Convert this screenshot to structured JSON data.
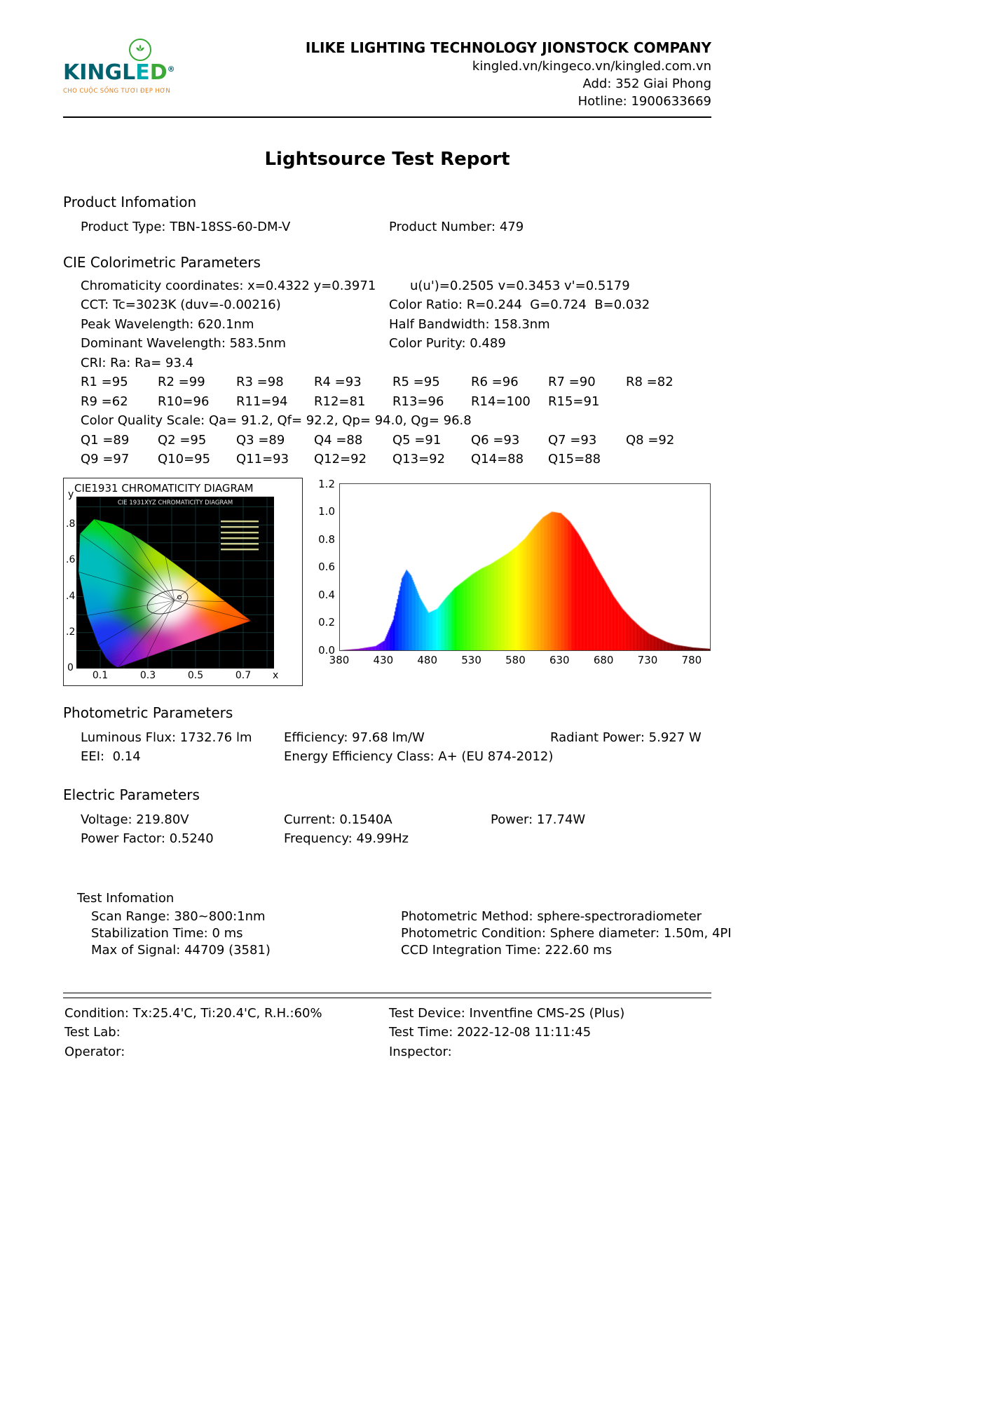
{
  "header": {
    "logo": {
      "brand_king": "KINGL",
      "brand_e": "E",
      "brand_d": "D",
      "registered": "®",
      "tagline": "CHO CUỘC SỐNG TƯƠI ĐẸP HƠN",
      "colors": {
        "brand_teal": "#00626e",
        "brand_light_teal": "#00a9ad",
        "brand_green": "#3aa935",
        "tagline_orange": "#e07f1f"
      }
    },
    "company_name": "ILIKE LIGHTING TECHNOLOGY JIONSTOCK COMPANY",
    "websites": "kingled.vn/kingeco.vn/kingled.com.vn",
    "address": "Add: 352 Giai Phong",
    "hotline": "Hotline: 1900633669"
  },
  "report_title": "Lightsource Test Report",
  "product_info": {
    "heading": "Product Infomation",
    "product_type": "Product Type: TBN-18SS-60-DM-V",
    "product_number": "Product Number: 479"
  },
  "cie_params": {
    "heading": "CIE Colorimetric Parameters",
    "chromaticity_left": "Chromaticity coordinates: x=0.4322 y=0.3971",
    "chromaticity_right": "u(u')=0.2505 v=0.3453 v'=0.5179",
    "cct": "CCT: Tc=3023K (duv=-0.00216)",
    "color_ratio": "Color Ratio: R=0.244  G=0.724  B=0.032",
    "peak_wavelength": "Peak Wavelength: 620.1nm",
    "half_bandwidth": "Half Bandwidth: 158.3nm",
    "dominant_wavelength": "Dominant Wavelength: 583.5nm",
    "color_purity": "Color Purity: 0.489",
    "cri": "CRI: Ra: Ra= 93.4",
    "r_row1": [
      "R1 =95",
      "R2 =99",
      "R3 =98",
      "R4 =93",
      "R5 =95",
      "R6 =96",
      "R7 =90",
      "R8 =82"
    ],
    "r_row2": [
      "R9 =62",
      "R10=96",
      "R11=94",
      "R12=81",
      "R13=96",
      "R14=100",
      "R15=91"
    ],
    "cqs": "Color Quality Scale: Qa= 91.2, Qf= 92.2, Qp= 94.0, Qg= 96.8",
    "q_row1": [
      "Q1 =89",
      "Q2 =95",
      "Q3 =89",
      "Q4 =88",
      "Q5 =91",
      "Q6 =93",
      "Q7 =93",
      "Q8 =92"
    ],
    "q_row2": [
      "Q9 =97",
      "Q10=95",
      "Q11=93",
      "Q12=92",
      "Q13=92",
      "Q14=88",
      "Q15=88"
    ]
  },
  "photometric": {
    "heading": "Photometric Parameters",
    "luminous_flux": "Luminous Flux: 1732.76 lm",
    "efficiency": "Efficiency: 97.68 lm/W",
    "radiant_power": "Radiant Power: 5.927 W",
    "eei": "EEI:  0.14",
    "energy_class": "Energy Efficiency Class: A+ (EU 874-2012)"
  },
  "electric": {
    "heading": "Electric Parameters",
    "voltage": "Voltage: 219.80V",
    "current": "Current: 0.1540A",
    "power": "Power: 17.74W",
    "power_factor": "Power Factor: 0.5240",
    "frequency": "Frequency: 49.99Hz"
  },
  "test_info": {
    "heading": "Test Infomation",
    "scan_range": "Scan Range: 380~800:1nm",
    "stabilization_time": "Stabilization Time: 0 ms",
    "max_signal": "Max of Signal: 44709 (3581)",
    "photometric_method": "Photometric Method: sphere-spectroradiometer",
    "photometric_condition": "Photometric Condition: Sphere diameter: 1.50m, 4PI",
    "ccd_integration": "CCD Integration Time: 222.60 ms"
  },
  "footer": {
    "condition": "Condition: Tx:25.4'C, Ti:20.4'C, R.H.:60%",
    "test_device": "Test Device: Inventfine CMS-2S (Plus)",
    "test_lab": "Test Lab:",
    "test_time": "Test Time: 2022-12-08 11:11:45",
    "operator": "Operator:",
    "inspector": "Inspector:"
  },
  "chart_data": [
    {
      "type": "scatter",
      "name": "cie1931-chromaticity-diagram",
      "title": "CIE1931 CHROMATICITY DIAGRAM",
      "inner_title": "CIE 1931XYZ CHROMATICITY DIAGRAM",
      "xlabel": "x",
      "ylabel": "y",
      "xlim": [
        0,
        0.8
      ],
      "ylim": [
        0,
        0.9
      ],
      "x_ticks": [
        "0.1",
        "0.3",
        "0.5",
        "0.7"
      ],
      "y_ticks": [
        ".8",
        ".6",
        ".4",
        ".2"
      ],
      "origin_label": "0",
      "points": [
        {
          "name": "source-chromaticity",
          "x": 0.4322,
          "y": 0.3971
        }
      ]
    },
    {
      "type": "area",
      "name": "spectral-power-distribution",
      "x_ticks": [
        380,
        430,
        480,
        530,
        580,
        630,
        680,
        730,
        780
      ],
      "y_ticks": [
        "1.2",
        "1.0",
        "0.8",
        "0.6",
        "0.4",
        "0.2",
        "0.0"
      ],
      "xlim": [
        380,
        800
      ],
      "ylim": [
        0,
        1.2
      ],
      "series": [
        {
          "name": "relative spectral power",
          "x": [
            380,
            400,
            420,
            430,
            440,
            450,
            455,
            460,
            470,
            480,
            490,
            500,
            510,
            520,
            530,
            540,
            550,
            560,
            570,
            580,
            590,
            600,
            610,
            620,
            630,
            640,
            650,
            660,
            670,
            680,
            690,
            700,
            710,
            720,
            730,
            740,
            750,
            760,
            770,
            780,
            790,
            800
          ],
          "y": [
            0.0,
            0.01,
            0.03,
            0.07,
            0.22,
            0.52,
            0.58,
            0.54,
            0.38,
            0.27,
            0.3,
            0.38,
            0.45,
            0.5,
            0.55,
            0.59,
            0.62,
            0.66,
            0.7,
            0.75,
            0.81,
            0.89,
            0.96,
            1.0,
            0.99,
            0.93,
            0.84,
            0.73,
            0.61,
            0.5,
            0.39,
            0.3,
            0.23,
            0.17,
            0.12,
            0.09,
            0.06,
            0.04,
            0.03,
            0.02,
            0.015,
            0.01
          ]
        }
      ]
    }
  ]
}
